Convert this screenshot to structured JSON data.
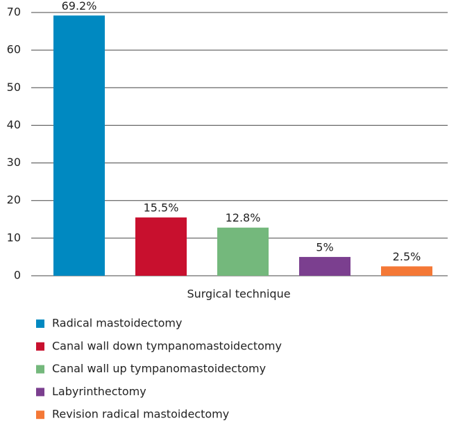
{
  "chart_data": {
    "type": "bar",
    "categories": [
      "Radical mastoidectomy",
      "Canal wall down tympanomastoidectomy",
      "Canal wall up tympanomastoidectomy",
      "Labyrinthectomy",
      "Revision radical mastoidectomy"
    ],
    "values": [
      69.2,
      15.5,
      12.8,
      5,
      2.5
    ],
    "value_labels": [
      "69.2%",
      "15.5%",
      "12.8%",
      "5%",
      "2.5%"
    ],
    "colors": [
      "#0089c1",
      "#c8102e",
      "#74b87c",
      "#7b3f8f",
      "#f47836"
    ],
    "x_label": "Surgical technique",
    "ylim": [
      0,
      70
    ],
    "yticks": [
      0,
      10,
      20,
      30,
      40,
      50,
      60,
      70
    ],
    "grid": true
  }
}
